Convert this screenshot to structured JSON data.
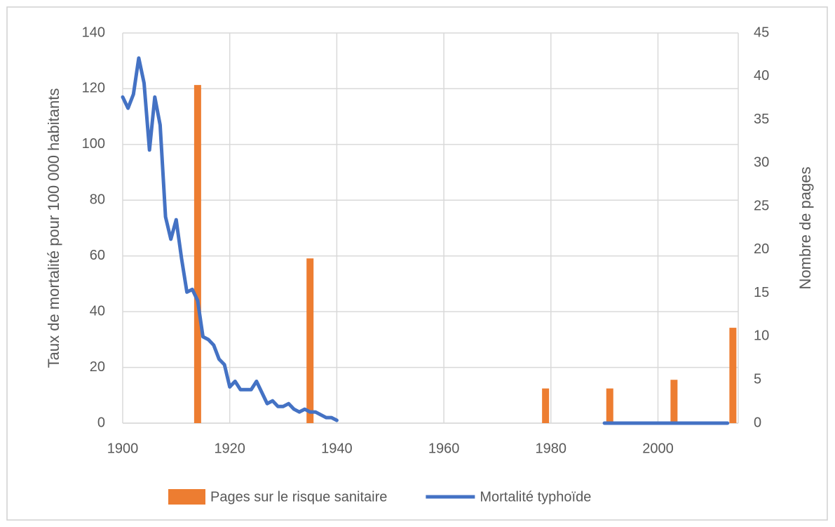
{
  "chart_data": {
    "type": "combo",
    "ylabel": "Taux de mortalité pour 100 000 habitants",
    "y2label": "Nombre de pages",
    "xlim": [
      1900,
      2015
    ],
    "xticks": [
      1900,
      1920,
      1940,
      1960,
      1980,
      2000
    ],
    "ylim": [
      0,
      140
    ],
    "yticks": [
      0,
      20,
      40,
      60,
      80,
      100,
      120,
      140
    ],
    "y2lim": [
      0,
      45
    ],
    "y2ticks": [
      0,
      5,
      10,
      15,
      20,
      25,
      30,
      35,
      40,
      45
    ],
    "grid": true,
    "legend": "bottom",
    "series": [
      {
        "name": "Pages sur le risque sanitaire",
        "type": "bar",
        "axis": "y2",
        "color": "#ed7d31",
        "x": [
          1914,
          1935,
          1979,
          1991,
          2003,
          2014
        ],
        "values": [
          39,
          19,
          4,
          4,
          5,
          11
        ]
      },
      {
        "name": "Mortalité typhoïde",
        "type": "line",
        "color": "#4472c4",
        "x": [
          1900,
          1901,
          1902,
          1903,
          1904,
          1905,
          1906,
          1907,
          1908,
          1909,
          1910,
          1911,
          1912,
          1913,
          1914,
          1915,
          1916,
          1917,
          1918,
          1919,
          1920,
          1921,
          1922,
          1923,
          1924,
          1925,
          1926,
          1927,
          1928,
          1929,
          1930,
          1931,
          1932,
          1933,
          1934,
          1935,
          1936,
          1937,
          1938,
          1939,
          1940,
          1941,
          1990,
          1991,
          1992,
          1993,
          1994,
          1995,
          1996,
          1997,
          1998,
          1999,
          2000,
          2001,
          2002,
          2003,
          2004,
          2005,
          2006,
          2007,
          2008,
          2009,
          2010,
          2011,
          2012,
          2013
        ],
        "values": [
          117,
          113,
          118,
          131,
          122,
          98,
          117,
          107,
          74,
          66,
          73,
          59,
          47,
          48,
          44,
          31,
          30,
          28,
          23,
          21,
          13,
          15,
          12,
          12,
          12,
          15,
          11,
          7,
          8,
          6,
          6,
          7,
          5,
          4,
          5,
          4,
          4,
          3,
          2,
          2,
          1,
          null,
          0,
          0,
          0,
          0,
          0,
          0,
          0,
          0,
          0,
          0,
          0,
          0,
          0,
          0,
          0,
          0,
          0,
          0,
          0,
          0,
          0,
          0,
          0,
          0
        ]
      }
    ]
  }
}
